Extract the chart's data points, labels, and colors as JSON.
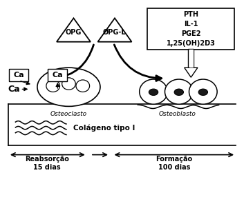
{
  "opg_label": "OPG",
  "opgl_label": "ØPG-L",
  "box_labels": [
    "PTH",
    "IL-1",
    "PGE2",
    "1,25(OH)2D3"
  ],
  "osteoclasto_label": "Osteoclasto",
  "osteoblasto_label": "Osteoblasto",
  "colageno_label": "Colágeno tipo I",
  "reabsorcao_label": "Reabsorção\n15 dias",
  "formacao_label": "Formação\n100 dias"
}
